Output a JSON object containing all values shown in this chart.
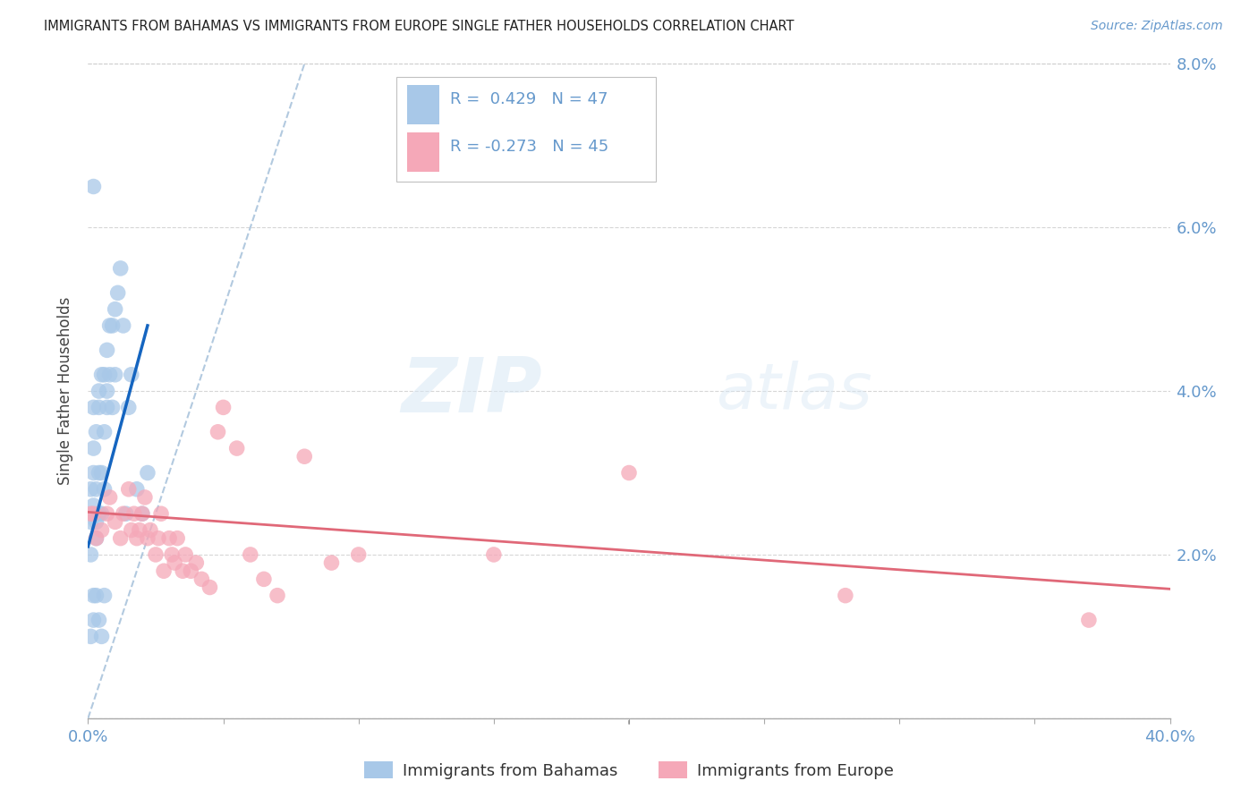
{
  "title": "IMMIGRANTS FROM BAHAMAS VS IMMIGRANTS FROM EUROPE SINGLE FATHER HOUSEHOLDS CORRELATION CHART",
  "source": "Source: ZipAtlas.com",
  "ylabel": "Single Father Households",
  "xlim": [
    0.0,
    0.4
  ],
  "ylim": [
    0.0,
    0.08
  ],
  "R_bahamas": 0.429,
  "N_bahamas": 47,
  "R_europe": -0.273,
  "N_europe": 45,
  "color_bahamas": "#a8c8e8",
  "color_europe": "#f5a8b8",
  "trendline_bahamas": "#1565C0",
  "trendline_europe": "#e06878",
  "diagonal_color": "#aac4dc",
  "watermark_zip": "ZIP",
  "watermark_atlas": "atlas",
  "axis_color": "#6699cc",
  "grid_color": "#cccccc",
  "title_color": "#222222",
  "bahamas_x": [
    0.001,
    0.001,
    0.001,
    0.002,
    0.002,
    0.002,
    0.002,
    0.003,
    0.003,
    0.003,
    0.003,
    0.004,
    0.004,
    0.004,
    0.004,
    0.005,
    0.005,
    0.005,
    0.006,
    0.006,
    0.006,
    0.007,
    0.007,
    0.007,
    0.008,
    0.008,
    0.009,
    0.009,
    0.01,
    0.01,
    0.011,
    0.012,
    0.013,
    0.014,
    0.015,
    0.016,
    0.018,
    0.02,
    0.022,
    0.001,
    0.002,
    0.002,
    0.003,
    0.004,
    0.005,
    0.006,
    0.002
  ],
  "bahamas_y": [
    0.024,
    0.02,
    0.028,
    0.026,
    0.03,
    0.033,
    0.038,
    0.024,
    0.028,
    0.022,
    0.035,
    0.03,
    0.04,
    0.038,
    0.025,
    0.03,
    0.042,
    0.025,
    0.035,
    0.028,
    0.042,
    0.04,
    0.045,
    0.038,
    0.042,
    0.048,
    0.048,
    0.038,
    0.042,
    0.05,
    0.052,
    0.055,
    0.048,
    0.025,
    0.038,
    0.042,
    0.028,
    0.025,
    0.03,
    0.01,
    0.012,
    0.015,
    0.015,
    0.012,
    0.01,
    0.015,
    0.065
  ],
  "europe_x": [
    0.001,
    0.003,
    0.005,
    0.007,
    0.008,
    0.01,
    0.012,
    0.013,
    0.015,
    0.016,
    0.017,
    0.018,
    0.019,
    0.02,
    0.021,
    0.022,
    0.023,
    0.025,
    0.026,
    0.027,
    0.028,
    0.03,
    0.031,
    0.032,
    0.033,
    0.035,
    0.036,
    0.038,
    0.04,
    0.042,
    0.045,
    0.048,
    0.05,
    0.055,
    0.06,
    0.065,
    0.07,
    0.08,
    0.09,
    0.1,
    0.15,
    0.2,
    0.28,
    0.37,
    0.002
  ],
  "europe_y": [
    0.025,
    0.022,
    0.023,
    0.025,
    0.027,
    0.024,
    0.022,
    0.025,
    0.028,
    0.023,
    0.025,
    0.022,
    0.023,
    0.025,
    0.027,
    0.022,
    0.023,
    0.02,
    0.022,
    0.025,
    0.018,
    0.022,
    0.02,
    0.019,
    0.022,
    0.018,
    0.02,
    0.018,
    0.019,
    0.017,
    0.016,
    0.035,
    0.038,
    0.033,
    0.02,
    0.017,
    0.015,
    0.032,
    0.019,
    0.02,
    0.02,
    0.03,
    0.015,
    0.012,
    0.025
  ],
  "trend_bah_x0": 0.0,
  "trend_bah_y0": 0.021,
  "trend_bah_x1": 0.022,
  "trend_bah_y1": 0.048,
  "trend_eur_x0": 0.0,
  "trend_eur_y0": 0.0252,
  "trend_eur_x1": 0.4,
  "trend_eur_y1": 0.0158
}
